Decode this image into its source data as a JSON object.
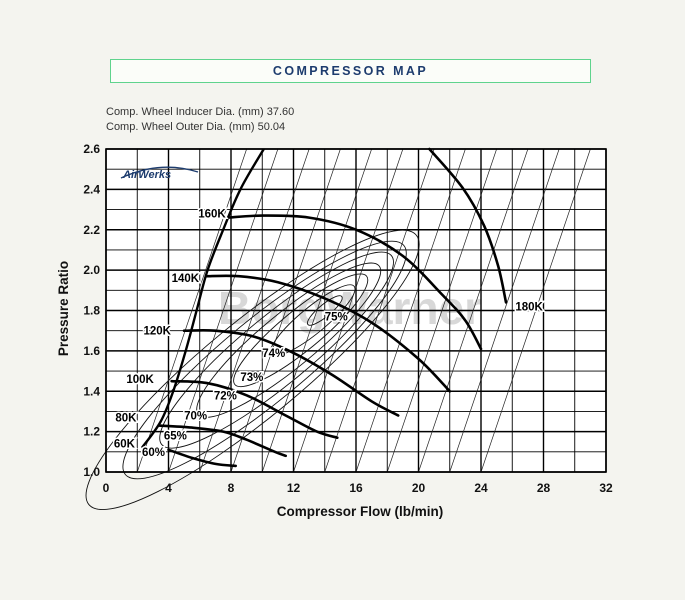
{
  "header": {
    "title": "COMPRESSOR MAP",
    "specs": [
      "Comp. Wheel Inducer Dia. (mm) 37.60",
      "Comp. Wheel Outer Dia. (mm) 50.04"
    ]
  },
  "watermark": {
    "logo_text": "AirWerks",
    "brand_text": "BorgWarner"
  },
  "colors": {
    "title_text": "#1d3c6e",
    "title_border": "#5fd38d",
    "logo": "#1d3c6e"
  },
  "chart_data": {
    "type": "line",
    "title": "",
    "xlabel": "Compressor Flow (lb/min)",
    "ylabel": "Pressure Ratio",
    "xlim": [
      0,
      32
    ],
    "ylim": [
      1.0,
      2.6
    ],
    "x_ticks": [
      0,
      4,
      8,
      12,
      16,
      20,
      24,
      28,
      32
    ],
    "y_ticks": [
      1.0,
      1.2,
      1.4,
      1.6,
      1.8,
      2.0,
      2.2,
      2.4,
      2.6
    ],
    "grid": true,
    "surge_line": [
      [
        2.3,
        1.12
      ],
      [
        3.5,
        1.25
      ],
      [
        4.3,
        1.4
      ],
      [
        5.1,
        1.6
      ],
      [
        5.8,
        1.8
      ],
      [
        6.5,
        2.0
      ],
      [
        7.5,
        2.2
      ],
      [
        8.6,
        2.4
      ],
      [
        10.1,
        2.6
      ]
    ],
    "speed_lines": [
      {
        "name": "60K",
        "label": "60K",
        "label_x": 0.5,
        "label_y": 1.14,
        "points": [
          [
            4.0,
            1.11
          ],
          [
            5.5,
            1.07
          ],
          [
            7.0,
            1.04
          ],
          [
            8.3,
            1.03
          ]
        ]
      },
      {
        "name": "80K",
        "label": "80K",
        "label_x": 0.6,
        "label_y": 1.27,
        "points": [
          [
            3.4,
            1.23
          ],
          [
            5.5,
            1.22
          ],
          [
            7.5,
            1.2
          ],
          [
            9.0,
            1.16
          ],
          [
            10.8,
            1.1
          ],
          [
            11.5,
            1.08
          ]
        ]
      },
      {
        "name": "100K",
        "label": "100K",
        "label_x": 1.3,
        "label_y": 1.46,
        "points": [
          [
            4.2,
            1.45
          ],
          [
            6.5,
            1.44
          ],
          [
            9.0,
            1.38
          ],
          [
            11.5,
            1.28
          ],
          [
            13.5,
            1.2
          ],
          [
            14.8,
            1.17
          ]
        ]
      },
      {
        "name": "120K",
        "label": "120K",
        "label_x": 2.4,
        "label_y": 1.7,
        "points": [
          [
            5.0,
            1.7
          ],
          [
            7.0,
            1.7
          ],
          [
            9.5,
            1.67
          ],
          [
            12.0,
            1.59
          ],
          [
            14.5,
            1.48
          ],
          [
            17.0,
            1.35
          ],
          [
            18.7,
            1.28
          ]
        ]
      },
      {
        "name": "140K",
        "label": "140K",
        "label_x": 4.2,
        "label_y": 1.96,
        "points": [
          [
            6.4,
            1.97
          ],
          [
            8.5,
            1.97
          ],
          [
            11.0,
            1.94
          ],
          [
            14.0,
            1.86
          ],
          [
            17.0,
            1.74
          ],
          [
            20.0,
            1.56
          ],
          [
            22.0,
            1.4
          ]
        ]
      },
      {
        "name": "160K",
        "label": "160K",
        "label_x": 5.9,
        "label_y": 2.28,
        "points": [
          [
            7.8,
            2.26
          ],
          [
            10.0,
            2.27
          ],
          [
            13.0,
            2.26
          ],
          [
            16.0,
            2.2
          ],
          [
            19.0,
            2.07
          ],
          [
            21.5,
            1.88
          ],
          [
            23.0,
            1.75
          ],
          [
            24.0,
            1.61
          ]
        ]
      },
      {
        "name": "180K",
        "label": "180K",
        "label_x": 26.2,
        "label_y": 1.82,
        "points": [
          [
            20.7,
            2.6
          ],
          [
            22.8,
            2.41
          ],
          [
            24.2,
            2.22
          ],
          [
            25.1,
            2.02
          ],
          [
            25.6,
            1.84
          ]
        ]
      }
    ],
    "efficiency_islands": [
      {
        "label": "60%",
        "label_x": 2.3,
        "label_y": 1.1
      },
      {
        "label": "65%",
        "label_x": 3.7,
        "label_y": 1.18
      },
      {
        "label": "70%",
        "label_x": 5.0,
        "label_y": 1.28
      },
      {
        "label": "72%",
        "label_x": 6.9,
        "label_y": 1.38
      },
      {
        "label": "73%",
        "label_x": 8.6,
        "label_y": 1.47
      },
      {
        "label": "74%",
        "label_x": 10.0,
        "label_y": 1.59
      },
      {
        "label": "75%",
        "label_x": 14.0,
        "label_y": 1.77
      }
    ]
  }
}
